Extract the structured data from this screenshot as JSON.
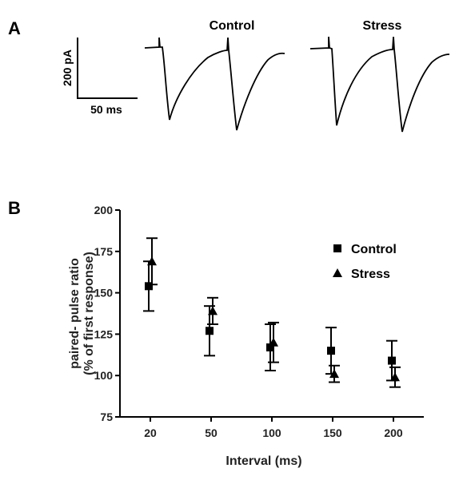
{
  "panels": {
    "a": "A",
    "b": "B"
  },
  "traces": {
    "control_title": "Control",
    "stress_title": "Stress"
  },
  "scale_bar": {
    "current": "200 pA",
    "time": "50 ms"
  },
  "chart_data": {
    "type": "scatter",
    "xlabel": "Interval (ms)",
    "ylabel_line1": "paired- pulse ratio",
    "ylabel_line2": "(% of first response)",
    "categories": [
      "20",
      "50",
      "100",
      "150",
      "200"
    ],
    "ylim": [
      75,
      200
    ],
    "yticks": [
      "75",
      "100",
      "125",
      "150",
      "175",
      "200"
    ],
    "legend_position": "top-right",
    "series": [
      {
        "name": "Control",
        "marker": "square",
        "color": "#000000",
        "values": [
          154,
          127,
          117,
          115,
          109
        ],
        "error": [
          15,
          15,
          14,
          14,
          12
        ]
      },
      {
        "name": "Stress",
        "marker": "triangle",
        "color": "#000000",
        "values": [
          169,
          139,
          120,
          101,
          99
        ],
        "error": [
          14,
          8,
          12,
          5,
          6
        ]
      }
    ]
  }
}
